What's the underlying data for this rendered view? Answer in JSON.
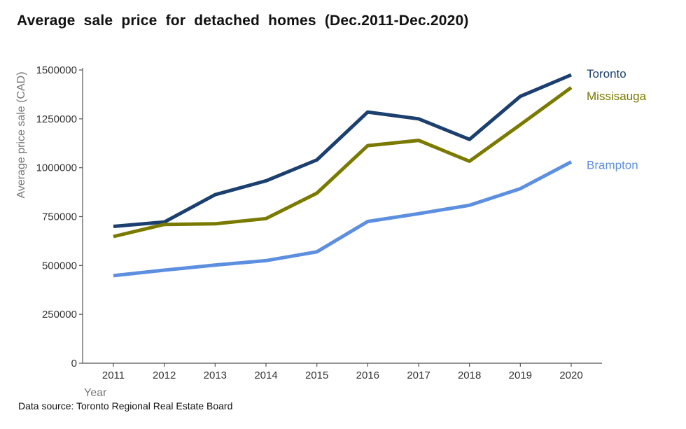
{
  "chart_data": {
    "type": "line",
    "title": "Average  sale  price  for  detached  homes  (Dec.2011-Dec.2020)",
    "xlabel": "Year",
    "ylabel": "Average price sale (CAD)",
    "x": [
      2011,
      2012,
      2013,
      2014,
      2015,
      2016,
      2017,
      2018,
      2019,
      2020
    ],
    "ylim": [
      0,
      1500000
    ],
    "yticks": [
      0,
      250000,
      500000,
      750000,
      1000000,
      1250000,
      1500000
    ],
    "ytick_labels": [
      "0",
      "250000",
      "500000",
      "750000",
      "1000000",
      "1250000",
      "1500000"
    ],
    "xtick_labels": [
      "2011",
      "2012",
      "2013",
      "2014",
      "2015",
      "2016",
      "2017",
      "2018",
      "2019",
      "2020"
    ],
    "grid": false,
    "legend": "direct labels at line ends",
    "series": [
      {
        "name": "Toronto",
        "color": "#1b3f6e",
        "values": [
          700000,
          722000,
          862000,
          933000,
          1040000,
          1285000,
          1250000,
          1145000,
          1365000,
          1475000
        ]
      },
      {
        "name": "Missisauga",
        "color": "#7a7a00",
        "values": [
          648000,
          710000,
          713000,
          740000,
          870000,
          1113000,
          1140000,
          1033000,
          1220000,
          1410000
        ]
      },
      {
        "name": "Brampton",
        "color": "#5d8fe0",
        "values": [
          448000,
          476000,
          502000,
          525000,
          570000,
          725000,
          765000,
          808000,
          893000,
          1030000
        ]
      }
    ]
  },
  "source": "Data source: Toronto Regional Real Estate Board"
}
